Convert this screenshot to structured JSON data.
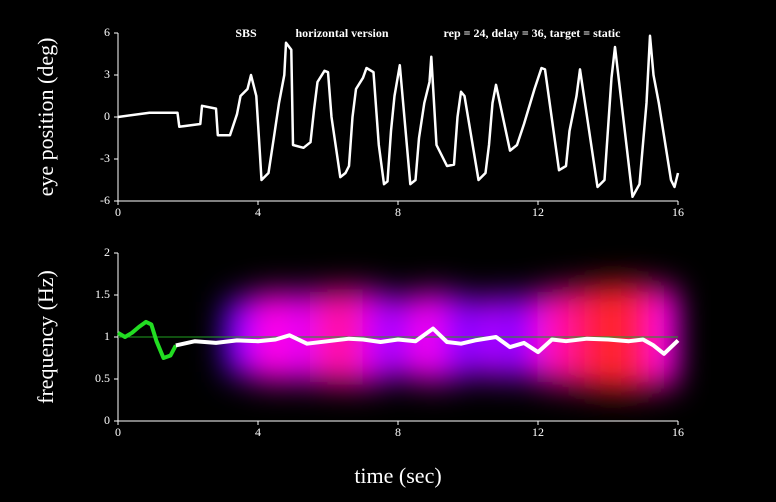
{
  "chart_data": [
    {
      "type": "line",
      "annotations": [
        "SBS",
        "horizontal version",
        "rep = 24,  delay = 36, target = static"
      ],
      "y_label": "eye position (deg)",
      "xlim": [
        0,
        16
      ],
      "xticks": [
        0,
        4,
        8,
        12,
        16
      ],
      "ylim": [
        -6,
        6
      ],
      "yticks": [
        -6,
        -3,
        0,
        3,
        6
      ],
      "series": [
        {
          "color": "#ffffff",
          "x": [
            0,
            0.9,
            1.7,
            1.75,
            2.35,
            2.4,
            2.8,
            2.85,
            3.2,
            3.4,
            3.5,
            3.7,
            3.8,
            3.95,
            4.05,
            4.1,
            4.3,
            4.45,
            4.6,
            4.75,
            4.8,
            4.95,
            5.0,
            5.3,
            5.5,
            5.6,
            5.7,
            5.9,
            6.0,
            6.1,
            6.35,
            6.5,
            6.6,
            6.7,
            6.8,
            7.0,
            7.1,
            7.3,
            7.45,
            7.6,
            7.7,
            7.8,
            7.9,
            8.05,
            8.35,
            8.5,
            8.6,
            8.75,
            8.9,
            8.95,
            9.1,
            9.4,
            9.6,
            9.7,
            9.8,
            9.9,
            10.3,
            10.5,
            10.6,
            10.7,
            10.8,
            11.2,
            11.4,
            11.6,
            11.9,
            12.1,
            12.2,
            12.6,
            12.8,
            12.9,
            13.1,
            13.2,
            13.7,
            13.9,
            14.1,
            14.2,
            14.7,
            14.9,
            15.1,
            15.2,
            15.3,
            15.45,
            15.8,
            15.9,
            16.0
          ],
          "values": [
            0,
            0.3,
            0.3,
            -0.7,
            -0.5,
            0.8,
            0.6,
            -1.3,
            -1.3,
            0.2,
            1.5,
            2.0,
            3.0,
            1.5,
            -2.5,
            -4.5,
            -4.0,
            -1.5,
            1.0,
            3.0,
            5.3,
            4.8,
            -2.0,
            -2.2,
            -1.8,
            0.5,
            2.5,
            3.3,
            3.2,
            0.0,
            -4.3,
            -4.0,
            -3.5,
            0.0,
            2.0,
            2.8,
            3.5,
            3.2,
            -2.0,
            -4.8,
            -4.6,
            -1.0,
            1.5,
            3.7,
            -4.8,
            -4.5,
            -1.5,
            1.0,
            2.5,
            4.3,
            -2.0,
            -3.5,
            -3.4,
            0.0,
            1.8,
            1.5,
            -4.5,
            -4.0,
            -2.0,
            1.0,
            2.3,
            -2.4,
            -2.0,
            -0.5,
            2.0,
            3.5,
            3.4,
            -3.8,
            -3.5,
            -1.0,
            1.5,
            3.4,
            -5.0,
            -4.5,
            2.8,
            5.0,
            -5.7,
            -4.8,
            1.0,
            5.8,
            3.0,
            1.0,
            -4.5,
            -5.0,
            -4.0
          ]
        }
      ]
    },
    {
      "type": "line",
      "x_label": "time (sec)",
      "y_label": "frequency (Hz)",
      "xlim": [
        0,
        16
      ],
      "xticks": [
        0,
        4,
        8,
        12,
        16
      ],
      "ylim": [
        0,
        2
      ],
      "yticks": [
        0,
        0.5,
        1,
        1.5,
        2
      ],
      "reference_line": 1,
      "reference_color": "#1fa01f",
      "series": [
        {
          "color": "#22dd22",
          "x": [
            0,
            0.2,
            0.4,
            0.6,
            0.8,
            0.95,
            1.1,
            1.3,
            1.5,
            1.65
          ],
          "values": [
            1.05,
            1.0,
            1.05,
            1.12,
            1.18,
            1.15,
            0.95,
            0.75,
            0.78,
            0.9
          ]
        },
        {
          "color": "#ffffff",
          "x": [
            1.65,
            2.2,
            2.8,
            3.4,
            4.0,
            4.5,
            4.9,
            5.4,
            6.0,
            6.6,
            7.0,
            7.5,
            8.0,
            8.5,
            9.0,
            9.4,
            9.8,
            10.2,
            10.8,
            11.2,
            11.6,
            12.0,
            12.4,
            12.8,
            13.4,
            14.0,
            14.6,
            15.0,
            15.3,
            15.6,
            16.0
          ],
          "values": [
            0.9,
            0.95,
            0.93,
            0.96,
            0.95,
            0.97,
            1.02,
            0.92,
            0.95,
            0.98,
            0.97,
            0.94,
            0.97,
            0.95,
            1.1,
            0.94,
            0.92,
            0.96,
            1.0,
            0.88,
            0.93,
            0.82,
            0.97,
            0.95,
            0.98,
            0.97,
            0.95,
            0.97,
            0.9,
            0.8,
            0.96
          ]
        }
      ],
      "spectrum": {
        "x": [
          3.5,
          4.0,
          4.5,
          5.0,
          5.5,
          6.0,
          6.5,
          7.0,
          7.5,
          8.0,
          8.5,
          9.0,
          9.5,
          10.0,
          10.5,
          11.0,
          11.5,
          12.0,
          12.5,
          13.0,
          13.5,
          14.0,
          14.5,
          15.0,
          15.5,
          16.0
        ],
        "intensity": [
          0.2,
          0.4,
          0.55,
          0.55,
          0.45,
          0.6,
          0.7,
          0.65,
          0.45,
          0.35,
          0.4,
          0.55,
          0.45,
          0.3,
          0.3,
          0.4,
          0.25,
          0.4,
          0.6,
          0.7,
          0.8,
          0.9,
          0.95,
          0.85,
          0.7,
          0.5
        ]
      }
    }
  ]
}
